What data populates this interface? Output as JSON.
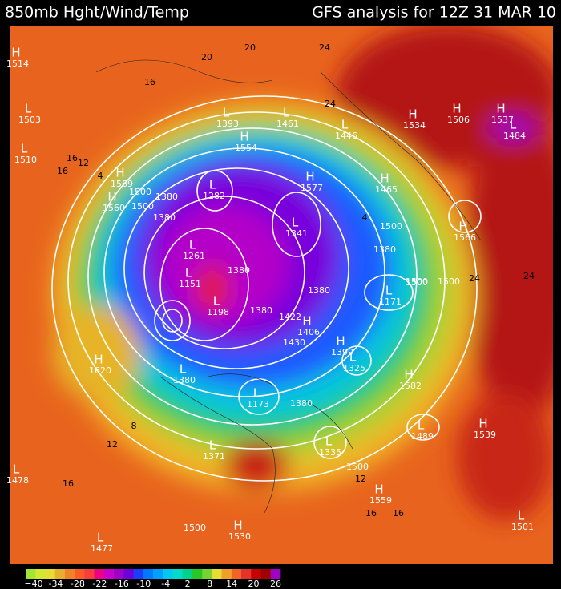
{
  "header": {
    "left_title": "850mb Hght/Wind/Temp",
    "right_title": "GFS analysis for 12Z 31 MAR 10"
  },
  "centers": [
    {
      "type": "H",
      "value": "1514"
    },
    {
      "type": "L",
      "value": "1503"
    },
    {
      "type": "L",
      "value": "1510"
    },
    {
      "type": "H",
      "value": "1569"
    },
    {
      "type": "H",
      "value": "1560"
    },
    {
      "type": "L",
      "value": "1282"
    },
    {
      "type": "L",
      "value": "1261"
    },
    {
      "type": "L",
      "value": "1151"
    },
    {
      "type": "L",
      "value": "1198"
    },
    {
      "type": "H",
      "value": "1620"
    },
    {
      "type": "L",
      "value": "1380"
    },
    {
      "type": "L",
      "value": "1173"
    },
    {
      "type": "L",
      "value": "1335"
    },
    {
      "type": "H",
      "value": "1559"
    },
    {
      "type": "L",
      "value": "1371"
    },
    {
      "type": "L",
      "value": "1477"
    },
    {
      "type": "L",
      "value": "1478"
    },
    {
      "type": "H",
      "value": "1530"
    },
    {
      "type": "L",
      "value": "1501"
    },
    {
      "type": "H",
      "value": "1539"
    },
    {
      "type": "L",
      "value": "1489"
    },
    {
      "type": "H",
      "value": "1582"
    },
    {
      "type": "L",
      "value": "1325"
    },
    {
      "type": "H",
      "value": "1399"
    },
    {
      "type": "H",
      "value": "1406"
    },
    {
      "type": "L",
      "value": "1341"
    },
    {
      "type": "H",
      "value": "1577"
    },
    {
      "type": "H",
      "value": "1554"
    },
    {
      "type": "L",
      "value": "1393"
    },
    {
      "type": "L",
      "value": "1461"
    },
    {
      "type": "L",
      "value": "1446"
    },
    {
      "type": "H",
      "value": "1534"
    },
    {
      "type": "H",
      "value": "1506"
    },
    {
      "type": "H",
      "value": "1537"
    },
    {
      "type": "L",
      "value": "1484"
    },
    {
      "type": "H",
      "value": "1465"
    },
    {
      "type": "H",
      "value": "1566"
    },
    {
      "type": "L",
      "value": "1171"
    }
  ],
  "height_labels": [
    "1500",
    "1380",
    "1380",
    "1380",
    "1500",
    "1380",
    "1380",
    "1430",
    "1422",
    "1380",
    "1500",
    "1500",
    "1500",
    "1380",
    "1500",
    "1500",
    "1500"
  ],
  "isotherm_labels": [
    "16",
    "16",
    "12",
    "4",
    "20",
    "20",
    "24",
    "24",
    "24",
    "16",
    "8",
    "12",
    "16",
    "12",
    "16",
    "16",
    "4",
    "24"
  ],
  "colorbar": {
    "labels": [
      "−40",
      "-34",
      "-28",
      "-22",
      "-16",
      "-10",
      "-4",
      "2",
      "8",
      "14",
      "20",
      "26"
    ],
    "colors": [
      "#a0e632",
      "#d2e632",
      "#e6dc32",
      "#e6af2d",
      "#f08228",
      "#fa5a28",
      "#fa3c3c",
      "#f00082",
      "#c800c8",
      "#a000c8",
      "#6e00dc",
      "#1e3cff",
      "#0078ff",
      "#00a0ff",
      "#00c8f0",
      "#00dcc8",
      "#00d28c",
      "#28c828",
      "#78d232",
      "#e6dc32",
      "#f0a028",
      "#f06428",
      "#e63228",
      "#c80000",
      "#a00000",
      "#a000c8"
    ]
  }
}
